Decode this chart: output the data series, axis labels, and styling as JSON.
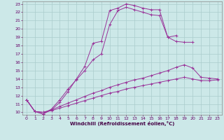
{
  "xlabel": "Windchill (Refroidissement éolien,°C)",
  "background_color": "#cce8e8",
  "grid_color": "#aacccc",
  "line_color": "#993399",
  "xlim": [
    -0.5,
    23.5
  ],
  "ylim": [
    9.7,
    23.3
  ],
  "xticks": [
    0,
    1,
    2,
    3,
    4,
    5,
    6,
    7,
    8,
    9,
    10,
    11,
    12,
    13,
    14,
    15,
    16,
    17,
    18,
    19,
    20,
    21,
    22,
    23
  ],
  "yticks": [
    10,
    11,
    12,
    13,
    14,
    15,
    16,
    17,
    18,
    19,
    20,
    21,
    22,
    23
  ],
  "series": [
    {
      "x": [
        0,
        1,
        2,
        3,
        4,
        5,
        6,
        7,
        8,
        9,
        10,
        11,
        12,
        13,
        14,
        15,
        16,
        17,
        18,
        19,
        20
      ],
      "y": [
        11.5,
        10.1,
        9.8,
        10.4,
        11.5,
        12.8,
        13.9,
        15.0,
        16.3,
        17.0,
        20.5,
        22.2,
        22.6,
        22.3,
        22.0,
        21.7,
        21.6,
        19.0,
        18.5,
        18.4,
        18.4
      ]
    },
    {
      "x": [
        0,
        1,
        2,
        3,
        4,
        5,
        6,
        7,
        8,
        9,
        10,
        11,
        12,
        13,
        14,
        15,
        16,
        17,
        18
      ],
      "y": [
        11.5,
        10.1,
        9.8,
        10.3,
        11.2,
        12.5,
        14.0,
        15.5,
        18.3,
        18.5,
        22.2,
        22.5,
        23.0,
        22.8,
        22.5,
        22.3,
        22.3,
        19.0,
        19.2
      ]
    },
    {
      "x": [
        0,
        1,
        2,
        3,
        4,
        5,
        6,
        7,
        8,
        9,
        10,
        11,
        12,
        13,
        14,
        15,
        16,
        17,
        18,
        19,
        20,
        21,
        22,
        23
      ],
      "y": [
        11.5,
        10.1,
        10.0,
        10.3,
        10.7,
        11.1,
        11.5,
        11.9,
        12.3,
        12.6,
        13.0,
        13.3,
        13.6,
        13.9,
        14.1,
        14.4,
        14.7,
        15.0,
        15.4,
        15.7,
        15.3,
        14.2,
        14.1,
        14.0
      ]
    },
    {
      "x": [
        0,
        1,
        2,
        3,
        4,
        5,
        6,
        7,
        8,
        9,
        10,
        11,
        12,
        13,
        14,
        15,
        16,
        17,
        18,
        19,
        20,
        21,
        22,
        23
      ],
      "y": [
        11.5,
        10.1,
        10.0,
        10.2,
        10.5,
        10.8,
        11.1,
        11.4,
        11.7,
        12.0,
        12.3,
        12.5,
        12.8,
        13.0,
        13.2,
        13.4,
        13.6,
        13.8,
        14.0,
        14.2,
        14.0,
        13.8,
        13.8,
        13.9
      ]
    }
  ]
}
